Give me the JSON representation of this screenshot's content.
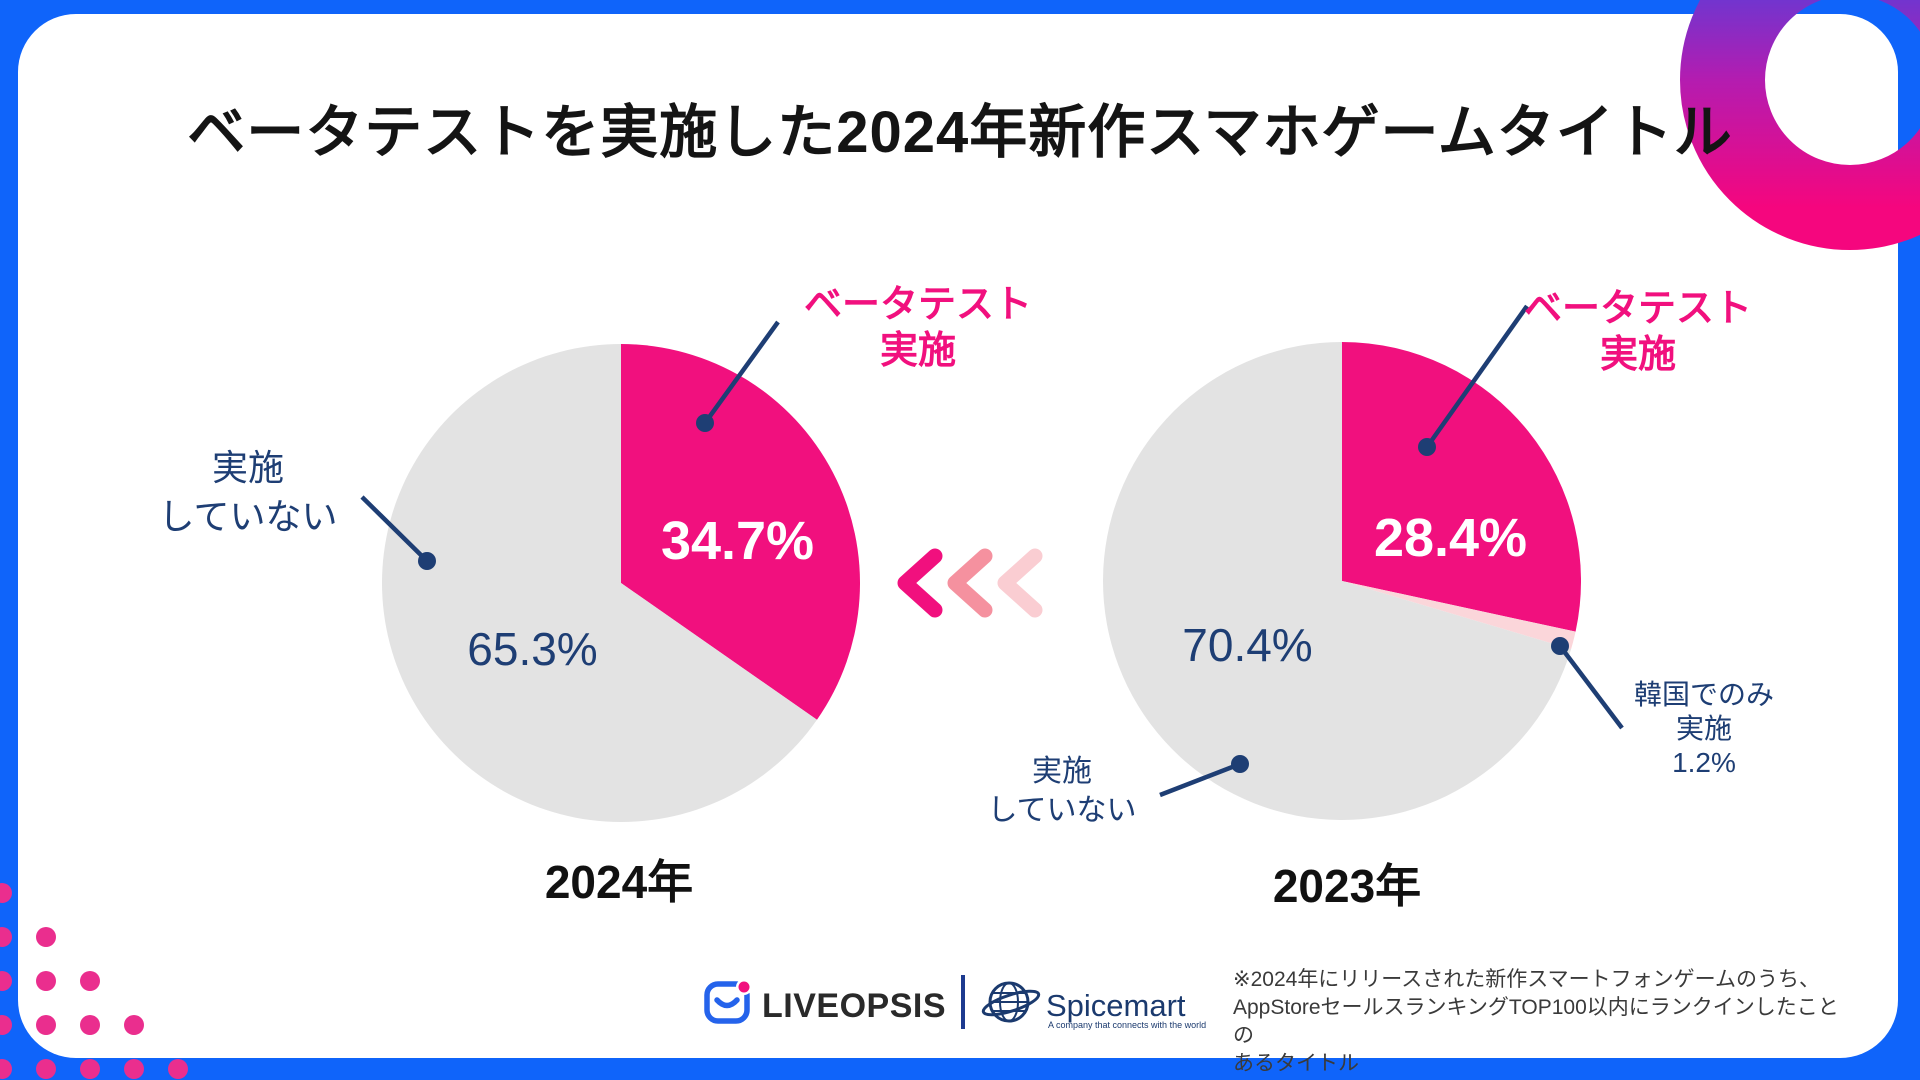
{
  "title": "ベータテストを実施した2024年新作スマホゲームタイトル",
  "chart_data": [
    {
      "type": "pie",
      "title": "2024年",
      "labels": [
        "ベータテスト実施",
        "実施していない"
      ],
      "values": [
        34.7,
        65.3
      ],
      "colors": [
        "#F1107E",
        "#E3E3E3"
      ],
      "start": "12-oclock",
      "direction": "clockwise"
    },
    {
      "type": "pie",
      "title": "2023年",
      "labels": [
        "ベータテスト実施",
        "韓国でのみ実施",
        "実施していない"
      ],
      "values": [
        28.4,
        1.2,
        70.4
      ],
      "colors": [
        "#F1107E",
        "#FBD6DA",
        "#E3E3E3"
      ],
      "start": "12-oclock",
      "direction": "clockwise"
    }
  ],
  "callouts": {
    "left_beta": "ベータテスト\n実施",
    "left_none": "実施\nしていない",
    "right_beta": "ベータテスト\n実施",
    "right_none": "実施\nしていない",
    "korea": "韓国でのみ\n実施\n1.2%"
  },
  "footer": {
    "liveopsis": "LIVEOPSIS",
    "spicemart": "Spicemart",
    "spicemart_tagline": "A company that connects with the world",
    "note": "※2024年にリリースされた新作スマートフォンゲームのうち、\nAppStoreセールスランキングTOP100以内にランクインしたことの\nあるタイトル"
  },
  "colors": {
    "frame_blue": "#0F64FA",
    "accent_pink": "#F1107E",
    "pale_pink": "#FBD6DA",
    "slice_gray": "#E3E3E3",
    "navy": "#1E3E74",
    "dot_magenta": "#EA2E8E",
    "ring_gradient": [
      "#4B43E0",
      "#B41CB0",
      "#F5067E"
    ],
    "chevrons": [
      "#F1107E",
      "#F5919F",
      "#FACDD2"
    ]
  }
}
